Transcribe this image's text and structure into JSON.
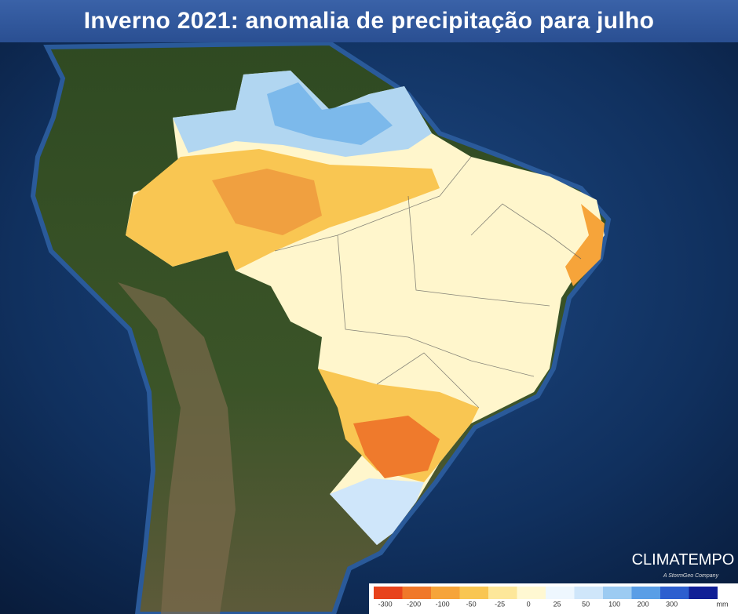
{
  "header": {
    "title": "Inverno 2021: anomalia de precipitação para julho"
  },
  "logo": {
    "name": "CLIMATEMPO",
    "tagline": "A StormGeo Company"
  },
  "legend": {
    "labels": [
      -300,
      -200,
      -100,
      -50,
      -25,
      0,
      25,
      50,
      100,
      200,
      300
    ],
    "colors": [
      "#e8431c",
      "#f0782a",
      "#f6a43a",
      "#f9c652",
      "#fde79a",
      "#fff8d2",
      "#eef7fe",
      "#cfe6fa",
      "#9ccbf2",
      "#5a9ee6",
      "#2d5fcf",
      "#101f96"
    ],
    "unit": "mm"
  }
}
